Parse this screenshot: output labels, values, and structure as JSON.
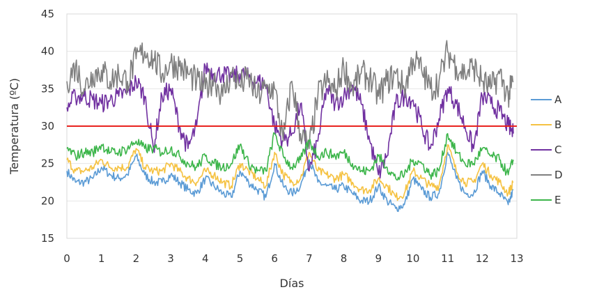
{
  "chart_data": {
    "type": "line",
    "xlabel": "Días",
    "ylabel": "Temperatura (ºC)",
    "xlim": [
      0,
      13
    ],
    "ylim": [
      15,
      45
    ],
    "xticks": [
      0,
      1,
      2,
      3,
      4,
      5,
      6,
      7,
      8,
      9,
      10,
      11,
      12,
      13
    ],
    "yticks": [
      15,
      20,
      25,
      30,
      35,
      40,
      45
    ],
    "grid": "horizontal",
    "legend_position": "right",
    "reference_line": {
      "y": 30,
      "color": "#e8231f"
    },
    "series": [
      {
        "name": "A",
        "color": "#5b9bd5",
        "x": [
          0,
          0.25,
          0.5,
          0.75,
          1,
          1.25,
          1.5,
          1.75,
          2,
          2.25,
          2.5,
          2.75,
          3,
          3.25,
          3.5,
          3.75,
          4,
          4.25,
          4.5,
          4.75,
          5,
          5.25,
          5.5,
          5.75,
          6,
          6.25,
          6.5,
          6.75,
          7,
          7.25,
          7.5,
          7.75,
          8,
          8.25,
          8.5,
          8.75,
          9,
          9.25,
          9.5,
          9.75,
          10,
          10.25,
          10.5,
          10.75,
          11,
          11.25,
          11.5,
          11.75,
          12,
          12.25,
          12.5,
          12.75,
          12.9
        ],
        "y": [
          24,
          22.5,
          22.5,
          23,
          24.5,
          23.5,
          23,
          23.5,
          26,
          23.5,
          22.5,
          22.5,
          23.5,
          22.5,
          21.5,
          21,
          23,
          22,
          21,
          20.5,
          24,
          22.5,
          21.5,
          20.5,
          25,
          22,
          21,
          22,
          25.5,
          22.5,
          22,
          21.5,
          22,
          21,
          20,
          20,
          22,
          20,
          19,
          19.5,
          23,
          21.5,
          20.5,
          21,
          26.5,
          23,
          21,
          21,
          24,
          22,
          21,
          19.5,
          21.5
        ]
      },
      {
        "name": "B",
        "color": "#f5c242",
        "x": [
          0,
          0.25,
          0.5,
          0.75,
          1,
          1.25,
          1.5,
          1.75,
          2,
          2.25,
          2.5,
          2.75,
          3,
          3.25,
          3.5,
          3.75,
          4,
          4.25,
          4.5,
          4.75,
          5,
          5.25,
          5.5,
          5.75,
          6,
          6.25,
          6.5,
          6.75,
          7,
          7.25,
          7.5,
          7.75,
          8,
          8.25,
          8.5,
          8.75,
          9,
          9.25,
          9.5,
          9.75,
          10,
          10.25,
          10.5,
          10.75,
          11,
          11.25,
          11.5,
          11.75,
          12,
          12.25,
          12.5,
          12.75,
          12.9
        ],
        "y": [
          25.5,
          24,
          24,
          24.5,
          25.5,
          24.5,
          24.5,
          24.5,
          27,
          24.5,
          24,
          24,
          25,
          24,
          23,
          22.5,
          24,
          23.5,
          22.5,
          22,
          25,
          24,
          23,
          22,
          26.5,
          23.5,
          22.5,
          23,
          26.5,
          24,
          23.5,
          23,
          23.5,
          22.5,
          21.5,
          21.5,
          23,
          22,
          20.5,
          21,
          24,
          23,
          22,
          22,
          27.5,
          24,
          22.5,
          22.5,
          25,
          23.5,
          22.5,
          21,
          22.5
        ]
      },
      {
        "name": "C",
        "color": "#7030a0",
        "x": [
          0,
          0.25,
          0.5,
          0.75,
          1,
          1.25,
          1.5,
          1.75,
          2,
          2.25,
          2.5,
          2.75,
          3,
          3.25,
          3.5,
          3.75,
          4,
          4.25,
          4.5,
          4.75,
          5,
          5.25,
          5.5,
          5.75,
          6,
          6.25,
          6.5,
          6.75,
          7,
          7.25,
          7.5,
          7.75,
          8,
          8.25,
          8.5,
          8.75,
          9,
          9.25,
          9.5,
          9.75,
          10,
          10.25,
          10.5,
          10.75,
          11,
          11.25,
          11.5,
          11.75,
          12,
          12.25,
          12.5,
          12.75,
          12.9
        ],
        "y": [
          32.5,
          34,
          34,
          33.5,
          33,
          33.5,
          34,
          34.5,
          36,
          34,
          27,
          34,
          35,
          30,
          27,
          30,
          38,
          37,
          37,
          36.5,
          37,
          36.5,
          36,
          35.5,
          30,
          28,
          29,
          33,
          24,
          28,
          35,
          33,
          34,
          35.5,
          33,
          28,
          23.5,
          26,
          33,
          34,
          33.5,
          30,
          27,
          31,
          35,
          33,
          30,
          27,
          34,
          33,
          32,
          30,
          29
        ]
      },
      {
        "name": "D",
        "color": "#7f7f7f",
        "x": [
          0,
          0.25,
          0.5,
          0.75,
          1,
          1.25,
          1.5,
          1.75,
          2,
          2.25,
          2.5,
          2.75,
          3,
          3.25,
          3.5,
          3.75,
          4,
          4.25,
          4.5,
          4.75,
          5,
          5.25,
          5.5,
          5.75,
          6,
          6.25,
          6.5,
          6.75,
          7,
          7.25,
          7.5,
          7.75,
          8,
          8.25,
          8.5,
          8.75,
          9,
          9.25,
          9.5,
          9.75,
          10,
          10.25,
          10.5,
          10.75,
          11,
          11.25,
          11.5,
          11.75,
          12,
          12.25,
          12.5,
          12.75,
          12.9
        ],
        "y": [
          36,
          38,
          35,
          37,
          37.5,
          36,
          37,
          36,
          39,
          40,
          39,
          37,
          38.5,
          38,
          37,
          36,
          35,
          36.5,
          34,
          37,
          35.5,
          36.5,
          34,
          35,
          35,
          28,
          36,
          29,
          27,
          34,
          36,
          34.5,
          38,
          35,
          37,
          36.5,
          34,
          36,
          37,
          35,
          39,
          37.5,
          35,
          36,
          40,
          38,
          37,
          38,
          36,
          35,
          37,
          34,
          36
        ]
      },
      {
        "name": "E",
        "color": "#3cb54a",
        "x": [
          0,
          0.25,
          0.5,
          0.75,
          1,
          1.25,
          1.5,
          1.75,
          2,
          2.25,
          2.5,
          2.75,
          3,
          3.25,
          3.5,
          3.75,
          4,
          4.25,
          4.5,
          4.75,
          5,
          5.25,
          5.5,
          5.75,
          6,
          6.25,
          6.5,
          6.75,
          7,
          7.25,
          7.5,
          7.75,
          8,
          8.25,
          8.5,
          8.75,
          9,
          9.25,
          9.5,
          9.75,
          10,
          10.25,
          10.5,
          10.75,
          11,
          11.25,
          11.5,
          11.75,
          12,
          12.25,
          12.5,
          12.75,
          12.9
        ],
        "y": [
          27,
          26,
          26.5,
          26.5,
          27.5,
          26.5,
          26.5,
          27,
          28,
          27,
          27,
          26.5,
          27,
          26,
          25,
          24.5,
          26,
          25,
          24.5,
          25,
          27.5,
          25,
          24,
          24,
          29,
          26,
          24.5,
          25.5,
          28,
          26,
          26.5,
          26,
          26.5,
          25,
          24,
          24,
          26,
          24.5,
          23,
          23.5,
          25.5,
          25,
          23.5,
          24,
          29,
          26.5,
          25,
          25,
          27,
          26,
          25.5,
          23.5,
          25.5
        ]
      }
    ]
  }
}
